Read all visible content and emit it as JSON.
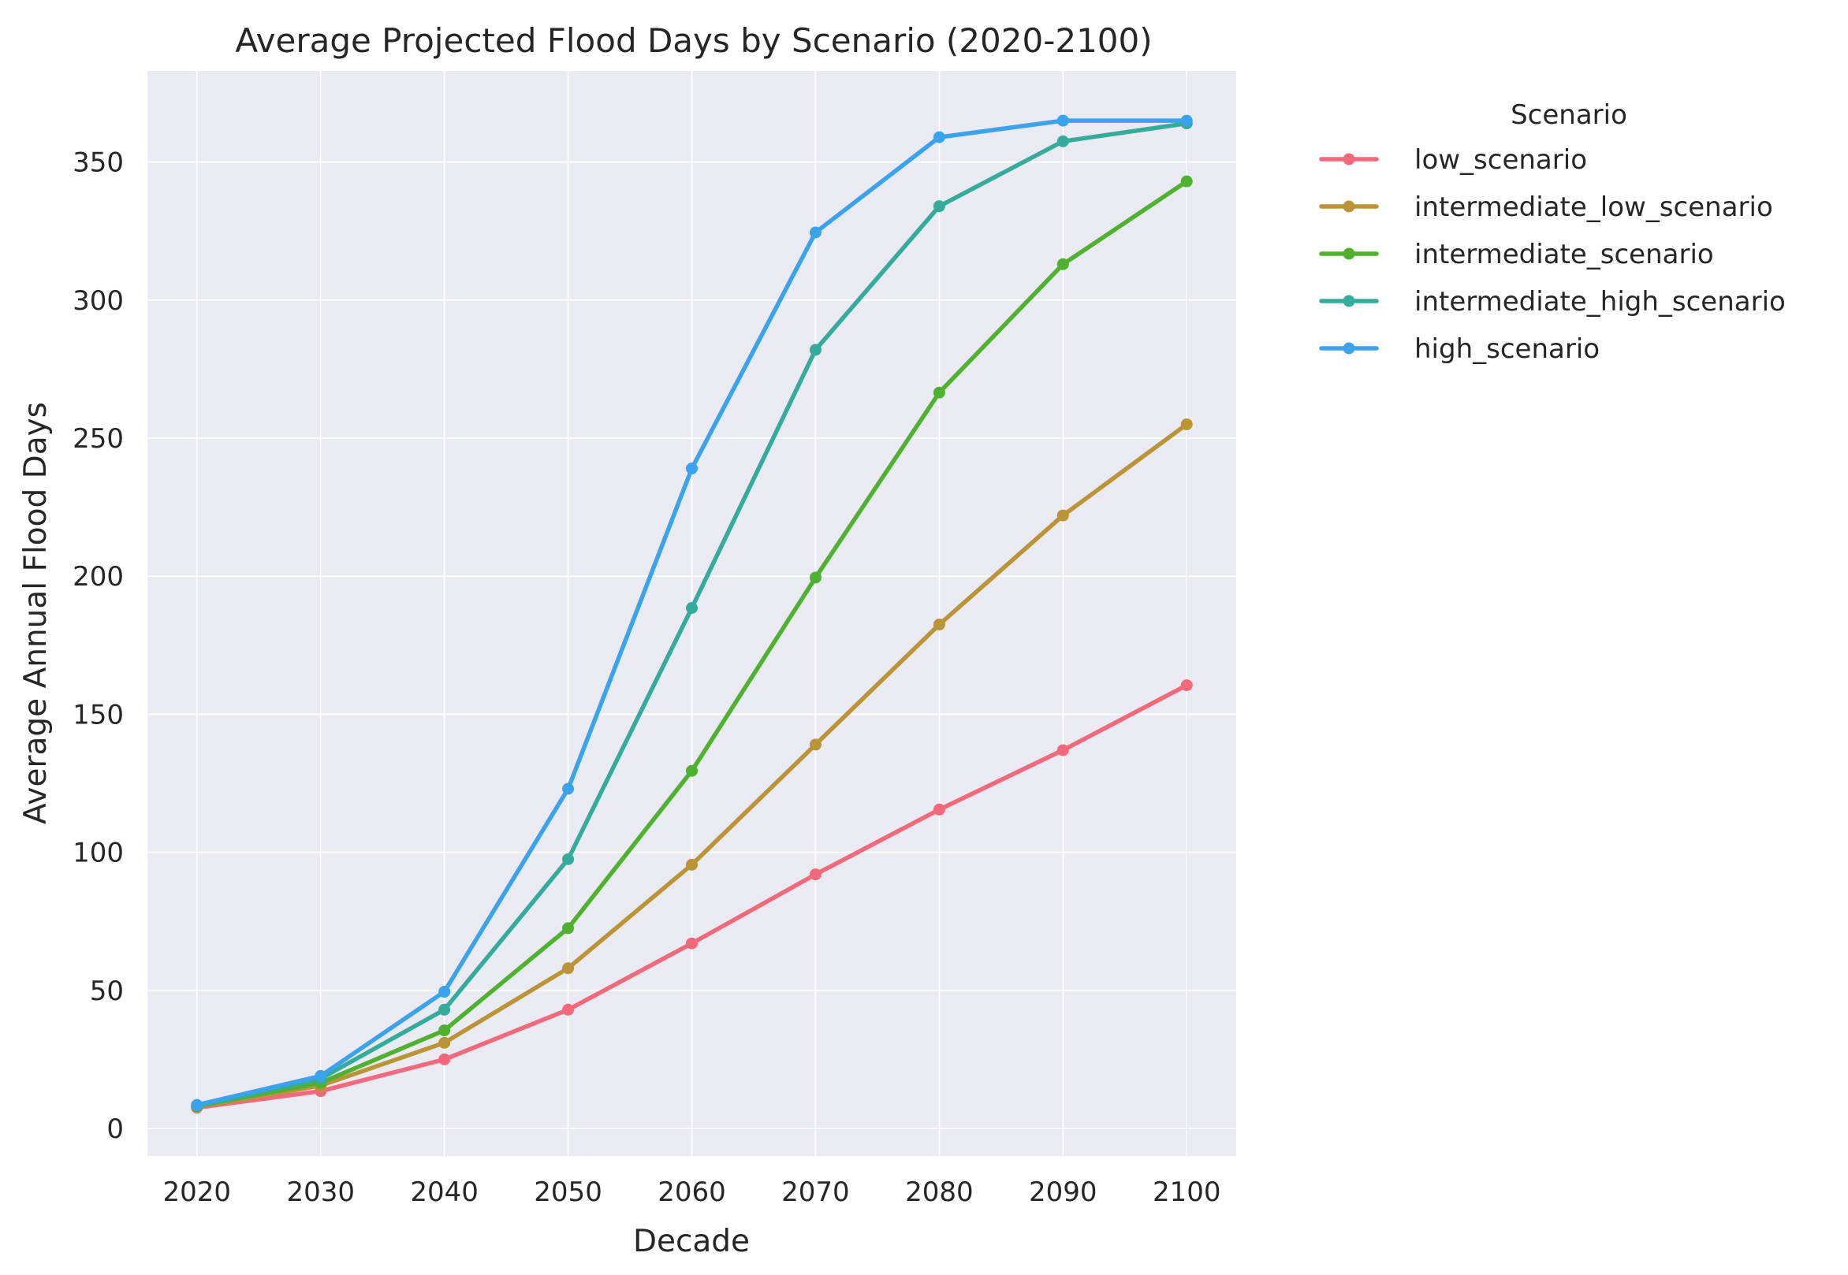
{
  "chart_data": {
    "type": "line",
    "title": "Average Projected Flood Days by Scenario (2020-2100)",
    "xlabel": "Decade",
    "ylabel": "Average Annual Flood Days",
    "x": [
      2020,
      2030,
      2040,
      2050,
      2060,
      2070,
      2080,
      2090,
      2100
    ],
    "x_tick_labels": [
      "2020",
      "2030",
      "2040",
      "2050",
      "2060",
      "2070",
      "2080",
      "2090",
      "2100"
    ],
    "y_ticks": [
      0,
      50,
      100,
      150,
      200,
      250,
      300,
      350
    ],
    "y_tick_labels": [
      "0",
      "50",
      "100",
      "150",
      "200",
      "250",
      "300",
      "350"
    ],
    "xlim": [
      2016,
      2104
    ],
    "ylim": [
      -10,
      383
    ],
    "grid": true,
    "legend": {
      "title": "Scenario",
      "placement": "outside-right-top"
    },
    "series": [
      {
        "name": "low_scenario",
        "color": "#f2697c",
        "values": [
          7.5,
          13.5,
          25,
          43,
          67,
          92,
          115.5,
          137,
          160.5
        ]
      },
      {
        "name": "intermediate_low_scenario",
        "color": "#bb9438",
        "values": [
          7.8,
          15.5,
          31,
          58,
          95.5,
          139,
          182.5,
          222,
          255
        ]
      },
      {
        "name": "intermediate_scenario",
        "color": "#50b131",
        "values": [
          8,
          16.5,
          35.5,
          72.5,
          129.5,
          199.5,
          266.5,
          313,
          343
        ]
      },
      {
        "name": "intermediate_high_scenario",
        "color": "#35ab9c",
        "values": [
          8.2,
          18,
          43,
          97.5,
          188.5,
          282,
          334,
          357.5,
          364
        ]
      },
      {
        "name": "high_scenario",
        "color": "#3ba3ec",
        "values": [
          8.5,
          19,
          49.5,
          123,
          239,
          324.5,
          359,
          365,
          365
        ]
      }
    ]
  }
}
